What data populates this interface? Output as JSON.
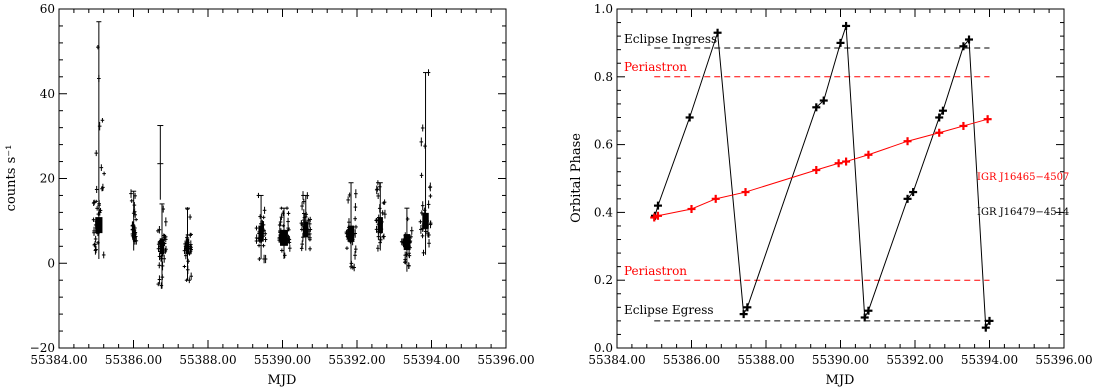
{
  "chart_data": [
    {
      "type": "scatter",
      "xlabel": "MJD",
      "ylabel": "counts s⁻¹",
      "xlim": [
        55384.0,
        55396.0
      ],
      "ylim": [
        -20,
        60
      ],
      "xticks": [
        55384,
        55386,
        55388,
        55390,
        55392,
        55394,
        55396
      ],
      "xtick_labels": [
        "55384.00",
        "55386.00",
        "55388.00",
        "55390.00",
        "55392.00",
        "55394.00",
        "55396.00"
      ],
      "yticks": [
        -20,
        0,
        20,
        40,
        60
      ],
      "ytick_labels": [
        "−20",
        "0",
        "20",
        "40",
        "60"
      ],
      "grid": false,
      "series": [
        {
          "color": "#000000",
          "marker": "plus-with-errorbars",
          "clusters": [
            {
              "x": [
                55384.92,
                55385.22
              ],
              "y_low": 1,
              "y_high": 57,
              "y_mid": 9
            },
            {
              "x": [
                55385.93,
                55386.08
              ],
              "y_low": 3,
              "y_high": 17,
              "y_mid": 7
            },
            {
              "x": [
                55386.65,
                55386.88
              ],
              "y_low": -6,
              "y_high": 14,
              "y_mid": 4
            },
            {
              "x": [
                55387.35,
                55387.55
              ],
              "y_low": -4,
              "y_high": 13,
              "y_mid": 4
            },
            {
              "x": [
                55389.3,
                55389.55
              ],
              "y_low": 1,
              "y_high": 16,
              "y_mid": 7
            },
            {
              "x": [
                55389.88,
                55390.2
              ],
              "y_low": 1,
              "y_high": 13,
              "y_mid": 6
            },
            {
              "x": [
                55390.5,
                55390.75
              ],
              "y_low": 3,
              "y_high": 16,
              "y_mid": 8
            },
            {
              "x": [
                55391.7,
                55391.98
              ],
              "y_low": -1,
              "y_high": 19,
              "y_mid": 7
            },
            {
              "x": [
                55392.5,
                55392.75
              ],
              "y_low": 3,
              "y_high": 19,
              "y_mid": 9
            },
            {
              "x": [
                55393.2,
                55393.48
              ],
              "y_low": -2,
              "y_high": 13,
              "y_mid": 5
            },
            {
              "x": [
                55393.7,
                55393.98
              ],
              "y_low": 2,
              "y_high": 45,
              "y_mid": 10
            }
          ],
          "outlier": {
            "x": 55386.72,
            "y": 23.5,
            "y_low": 15,
            "y_high": 32.5
          }
        }
      ]
    },
    {
      "type": "line",
      "xlabel": "MJD",
      "ylabel": "Orbital Phase",
      "xlim": [
        55384.0,
        55396.0
      ],
      "ylim": [
        0.0,
        1.0
      ],
      "xticks": [
        55384,
        55386,
        55388,
        55390,
        55392,
        55394,
        55396
      ],
      "xtick_labels": [
        "55384.00",
        "55386.00",
        "55388.00",
        "55390.00",
        "55392.00",
        "55394.00",
        "55396.00"
      ],
      "yticks": [
        0.0,
        0.2,
        0.4,
        0.6,
        0.8,
        1.0
      ],
      "ytick_labels": [
        "0.0",
        "0.2",
        "0.4",
        "0.6",
        "0.8",
        "1.0"
      ],
      "grid": false,
      "series": [
        {
          "name": "IGR J16479−4514",
          "color": "#000000",
          "x": [
            55385.02,
            55385.1,
            55385.95,
            55386.7,
            55387.4,
            55387.5,
            55389.35,
            55389.55,
            55390.0,
            55390.15,
            55390.65,
            55390.75,
            55391.8,
            55391.95,
            55392.65,
            55392.75,
            55393.3,
            55393.45,
            55393.9,
            55394.0
          ],
          "y": [
            0.39,
            0.42,
            0.68,
            0.93,
            0.1,
            0.12,
            0.71,
            0.73,
            0.9,
            0.95,
            0.09,
            0.11,
            0.44,
            0.46,
            0.68,
            0.7,
            0.89,
            0.91,
            0.06,
            0.08
          ]
        },
        {
          "name": "IGR J16465−4507",
          "color": "#ff0000",
          "x": [
            55385.0,
            55385.1,
            55386.0,
            55386.65,
            55387.45,
            55389.35,
            55389.95,
            55390.15,
            55390.75,
            55391.8,
            55392.65,
            55393.3,
            55393.95
          ],
          "y": [
            0.385,
            0.39,
            0.41,
            0.44,
            0.46,
            0.525,
            0.545,
            0.55,
            0.57,
            0.61,
            0.635,
            0.655,
            0.675
          ]
        }
      ],
      "reference_lines": [
        {
          "label": "Eclipse Ingress",
          "y": 0.885,
          "color": "#000000"
        },
        {
          "label": "Periastron",
          "y": 0.8,
          "color": "#ff0000"
        },
        {
          "label": "Periastron",
          "y": 0.2,
          "color": "#ff0000"
        },
        {
          "label": "Eclipse Egress",
          "y": 0.08,
          "color": "#000000"
        }
      ],
      "reference_xrange": [
        55385.0,
        55394.0
      ],
      "annotations": [
        {
          "text": "IGR J16465−4507",
          "color": "#ff0000"
        },
        {
          "text": "IGR J16479−4514",
          "color": "#000000"
        }
      ]
    }
  ]
}
